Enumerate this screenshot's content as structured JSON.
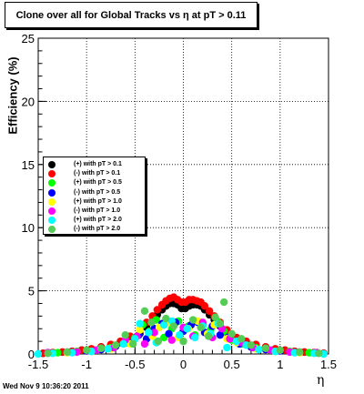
{
  "chart_data": {
    "type": "scatter",
    "title": "Clone  over all for Global Tracks vs η at pT > 0.11",
    "xlabel": "η",
    "ylabel": "Efficiency (%)",
    "xlim": [
      -1.5,
      1.5
    ],
    "ylim": [
      0,
      25
    ],
    "xticks": [
      "-1.5",
      "-1",
      "-0.5",
      "0",
      "0.5",
      "1",
      "1.5"
    ],
    "yticks": [
      "0",
      "5",
      "10",
      "15",
      "20",
      "25"
    ],
    "grid": true,
    "legend_position": "left",
    "series": [
      {
        "name": "(+) with pT > 0.1",
        "color": "#000000",
        "points": [
          [
            -1.45,
            0.05
          ],
          [
            -1.35,
            0.1
          ],
          [
            -1.25,
            0.15
          ],
          [
            -1.15,
            0.2
          ],
          [
            -1.05,
            0.3
          ],
          [
            -0.95,
            0.4
          ],
          [
            -0.85,
            0.55
          ],
          [
            -0.75,
            0.7
          ],
          [
            -0.65,
            0.9
          ],
          [
            -0.55,
            1.2
          ],
          [
            -0.45,
            1.6
          ],
          [
            -0.38,
            2.1
          ],
          [
            -0.32,
            2.6
          ],
          [
            -0.27,
            3.1
          ],
          [
            -0.22,
            3.5
          ],
          [
            -0.18,
            3.8
          ],
          [
            -0.14,
            4.0
          ],
          [
            -0.1,
            4.0
          ],
          [
            -0.06,
            3.9
          ],
          [
            -0.02,
            3.6
          ],
          [
            0.02,
            3.6
          ],
          [
            0.06,
            3.8
          ],
          [
            0.1,
            3.9
          ],
          [
            0.14,
            3.9
          ],
          [
            0.18,
            3.8
          ],
          [
            0.22,
            3.5
          ],
          [
            0.27,
            3.1
          ],
          [
            0.32,
            2.7
          ],
          [
            0.38,
            2.2
          ],
          [
            0.45,
            1.7
          ],
          [
            0.55,
            1.2
          ],
          [
            0.65,
            0.9
          ],
          [
            0.75,
            0.7
          ],
          [
            0.85,
            0.55
          ],
          [
            0.95,
            0.4
          ],
          [
            1.05,
            0.3
          ],
          [
            1.15,
            0.2
          ],
          [
            1.25,
            0.15
          ],
          [
            1.35,
            0.1
          ],
          [
            1.45,
            0.05
          ]
        ]
      },
      {
        "name": "(-) with pT > 0.1",
        "color": "#ff0000",
        "points": [
          [
            -1.45,
            0.05
          ],
          [
            -1.35,
            0.1
          ],
          [
            -1.25,
            0.15
          ],
          [
            -1.15,
            0.2
          ],
          [
            -1.05,
            0.3
          ],
          [
            -0.95,
            0.4
          ],
          [
            -0.85,
            0.55
          ],
          [
            -0.75,
            0.75
          ],
          [
            -0.65,
            1.0
          ],
          [
            -0.55,
            1.4
          ],
          [
            -0.45,
            1.9
          ],
          [
            -0.38,
            2.5
          ],
          [
            -0.32,
            3.0
          ],
          [
            -0.27,
            3.5
          ],
          [
            -0.22,
            3.9
          ],
          [
            -0.18,
            4.2
          ],
          [
            -0.14,
            4.4
          ],
          [
            -0.1,
            4.5
          ],
          [
            -0.06,
            4.3
          ],
          [
            -0.02,
            4.1
          ],
          [
            0.02,
            4.1
          ],
          [
            0.06,
            4.3
          ],
          [
            0.1,
            4.3
          ],
          [
            0.14,
            4.2
          ],
          [
            0.18,
            4.1
          ],
          [
            0.22,
            3.8
          ],
          [
            0.27,
            3.4
          ],
          [
            0.32,
            3.0
          ],
          [
            0.38,
            2.5
          ],
          [
            0.45,
            1.9
          ],
          [
            0.55,
            1.3
          ],
          [
            0.65,
            1.0
          ],
          [
            0.75,
            0.75
          ],
          [
            0.85,
            0.55
          ],
          [
            0.95,
            0.4
          ],
          [
            1.05,
            0.3
          ],
          [
            1.15,
            0.2
          ],
          [
            1.25,
            0.15
          ],
          [
            1.35,
            0.1
          ],
          [
            1.45,
            0.05
          ]
        ]
      },
      {
        "name": "(+) with pT > 0.5",
        "color": "#00ff00",
        "points": [
          [
            -1.3,
            0.1
          ],
          [
            -1.1,
            0.2
          ],
          [
            -0.9,
            0.3
          ],
          [
            -0.75,
            0.5
          ],
          [
            -0.6,
            0.9
          ],
          [
            -0.5,
            1.3
          ],
          [
            -0.42,
            2.3
          ],
          [
            -0.35,
            1.8
          ],
          [
            -0.28,
            2.7
          ],
          [
            -0.2,
            1.3
          ],
          [
            -0.12,
            2.0
          ],
          [
            -0.05,
            2.6
          ],
          [
            0.05,
            2.2
          ],
          [
            0.12,
            1.5
          ],
          [
            0.2,
            2.4
          ],
          [
            0.28,
            1.9
          ],
          [
            0.35,
            2.6
          ],
          [
            0.42,
            1.8
          ],
          [
            0.5,
            1.1
          ],
          [
            0.6,
            0.8
          ],
          [
            0.75,
            0.5
          ],
          [
            0.9,
            0.3
          ],
          [
            1.1,
            0.2
          ],
          [
            1.3,
            0.1
          ]
        ]
      },
      {
        "name": "(-) with pT > 0.5",
        "color": "#0000ff",
        "points": [
          [
            -1.4,
            0.1
          ],
          [
            -1.2,
            0.15
          ],
          [
            -1.0,
            0.25
          ],
          [
            -0.85,
            0.35
          ],
          [
            -0.7,
            0.6
          ],
          [
            -0.58,
            0.9
          ],
          [
            -0.46,
            1.5
          ],
          [
            -0.38,
            1.2
          ],
          [
            -0.3,
            2.0
          ],
          [
            -0.22,
            2.4
          ],
          [
            -0.15,
            1.6
          ],
          [
            -0.08,
            2.5
          ],
          [
            0.0,
            1.8
          ],
          [
            0.08,
            2.3
          ],
          [
            0.15,
            2.5
          ],
          [
            0.22,
            1.7
          ],
          [
            0.3,
            2.2
          ],
          [
            0.38,
            1.5
          ],
          [
            0.46,
            1.3
          ],
          [
            0.58,
            0.8
          ],
          [
            0.7,
            0.55
          ],
          [
            0.85,
            0.35
          ],
          [
            1.0,
            0.25
          ],
          [
            1.2,
            0.15
          ],
          [
            1.38,
            0.1
          ]
        ]
      },
      {
        "name": "(+) with pT > 1.0",
        "color": "#ffff00",
        "points": [
          [
            -1.2,
            0.1
          ],
          [
            -0.95,
            0.2
          ],
          [
            -0.75,
            0.4
          ],
          [
            -0.55,
            0.8
          ],
          [
            -0.45,
            1.9
          ],
          [
            -0.32,
            1.4
          ],
          [
            -0.25,
            2.1
          ],
          [
            -0.15,
            2.5
          ],
          [
            -0.05,
            1.3
          ],
          [
            0.05,
            2.0
          ],
          [
            0.15,
            2.6
          ],
          [
            0.25,
            1.6
          ],
          [
            0.32,
            2.3
          ],
          [
            0.45,
            1.2
          ],
          [
            0.55,
            0.9
          ],
          [
            0.75,
            0.4
          ],
          [
            0.95,
            0.2
          ],
          [
            1.2,
            0.1
          ]
        ]
      },
      {
        "name": "(-) with pT > 1.0",
        "color": "#ff00ff",
        "points": [
          [
            -1.4,
            0.1
          ],
          [
            -1.1,
            0.15
          ],
          [
            -0.9,
            0.3
          ],
          [
            -0.72,
            0.5
          ],
          [
            -0.6,
            1.1
          ],
          [
            -0.48,
            1.4
          ],
          [
            -0.4,
            0.8
          ],
          [
            -0.3,
            1.7
          ],
          [
            -0.2,
            2.3
          ],
          [
            -0.12,
            1.1
          ],
          [
            0.0,
            2.1
          ],
          [
            0.1,
            1.4
          ],
          [
            0.2,
            2.5
          ],
          [
            0.3,
            1.3
          ],
          [
            0.4,
            2.0
          ],
          [
            0.48,
            1.2
          ],
          [
            0.6,
            0.9
          ],
          [
            0.72,
            0.5
          ],
          [
            0.9,
            0.3
          ],
          [
            1.1,
            0.15
          ],
          [
            1.38,
            0.1
          ]
        ]
      },
      {
        "name": "(+) with pT > 2.0",
        "color": "#00ffff",
        "points": [
          [
            -1.5,
            0.0
          ],
          [
            -1.35,
            0.05
          ],
          [
            -1.15,
            0.1
          ],
          [
            -0.95,
            0.2
          ],
          [
            -0.78,
            0.4
          ],
          [
            -0.62,
            0.8
          ],
          [
            -0.5,
            1.2
          ],
          [
            -0.45,
            2.4
          ],
          [
            -0.36,
            1.7
          ],
          [
            -0.28,
            0.9
          ],
          [
            -0.2,
            2.3
          ],
          [
            -0.12,
            2.6
          ],
          [
            -0.04,
            1.5
          ],
          [
            0.04,
            2.0
          ],
          [
            0.12,
            1.3
          ],
          [
            0.2,
            2.2
          ],
          [
            0.28,
            1.6
          ],
          [
            0.36,
            2.4
          ],
          [
            0.45,
            0.5
          ],
          [
            0.55,
            1.0
          ],
          [
            0.65,
            0.7
          ],
          [
            0.78,
            0.35
          ],
          [
            0.95,
            0.2
          ],
          [
            1.15,
            0.1
          ],
          [
            1.35,
            0.05
          ],
          [
            1.45,
            0.0
          ]
        ]
      },
      {
        "name": "(-) with pT > 2.0",
        "color": "#55cc55",
        "points": [
          [
            -1.4,
            0.05
          ],
          [
            -1.2,
            0.15
          ],
          [
            -1.0,
            0.3
          ],
          [
            -0.85,
            0.45
          ],
          [
            -0.7,
            0.7
          ],
          [
            -0.6,
            1.5
          ],
          [
            -0.52,
            0.8
          ],
          [
            -0.4,
            3.4
          ],
          [
            -0.33,
            2.5
          ],
          [
            -0.26,
            1.0
          ],
          [
            -0.18,
            2.8
          ],
          [
            -0.1,
            2.2
          ],
          [
            0.0,
            1.0
          ],
          [
            0.1,
            2.7
          ],
          [
            0.18,
            2.1
          ],
          [
            0.26,
            1.4
          ],
          [
            0.33,
            2.9
          ],
          [
            0.38,
            2.4
          ],
          [
            0.42,
            4.1
          ],
          [
            0.5,
            1.6
          ],
          [
            0.6,
            1.2
          ],
          [
            0.7,
            0.7
          ],
          [
            0.85,
            0.45
          ],
          [
            1.0,
            0.3
          ],
          [
            1.2,
            0.15
          ],
          [
            1.4,
            0.05
          ]
        ]
      }
    ]
  },
  "timestamp": "Wed Nov  9 10:36:20 2011"
}
